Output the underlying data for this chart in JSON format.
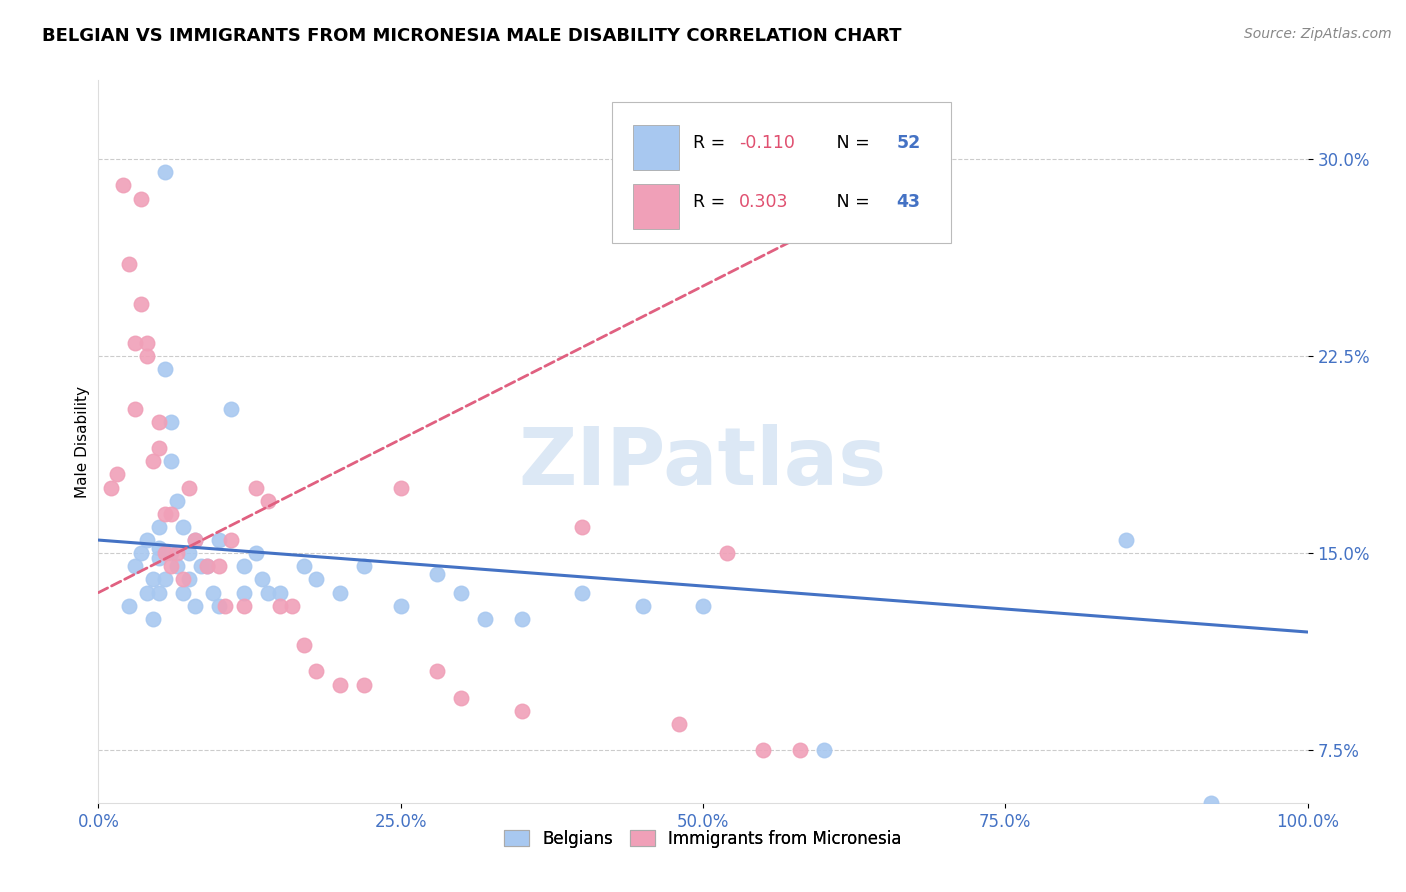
{
  "title": "BELGIAN VS IMMIGRANTS FROM MICRONESIA MALE DISABILITY CORRELATION CHART",
  "source": "Source: ZipAtlas.com",
  "ylabel": "Male Disability",
  "xlim": [
    0,
    100
  ],
  "ylim": [
    5.5,
    33.0
  ],
  "yticks": [
    7.5,
    15.0,
    22.5,
    30.0
  ],
  "xticks": [
    0,
    25,
    50,
    75,
    100
  ],
  "xtick_labels": [
    "0.0%",
    "25.0%",
    "50.0%",
    "75.0%",
    "100.0%"
  ],
  "ytick_labels": [
    "7.5%",
    "15.0%",
    "22.5%",
    "30.0%"
  ],
  "belgian_color": "#a8c8f0",
  "micronesia_color": "#f0a0b8",
  "belgian_R": -0.11,
  "belgian_N": 52,
  "micronesia_R": 0.303,
  "micronesia_N": 43,
  "background_color": "#ffffff",
  "grid_color": "#cccccc",
  "belgian_line_color": "#4472c4",
  "micronesia_line_color": "#e06080",
  "watermark_color": "#dce8f5",
  "axis_label_color": "#4472c4",
  "legend_R_color": "#e05070",
  "legend_N_color": "#4472c4",
  "belgian_x": [
    2.5,
    3.0,
    3.5,
    4.0,
    4.0,
    4.5,
    4.5,
    5.0,
    5.0,
    5.0,
    5.0,
    5.5,
    5.5,
    5.5,
    6.0,
    6.0,
    6.0,
    6.5,
    6.5,
    7.0,
    7.0,
    7.5,
    7.5,
    8.0,
    8.0,
    8.5,
    9.0,
    9.5,
    10.0,
    10.0,
    11.0,
    12.0,
    12.0,
    13.0,
    13.5,
    14.0,
    15.0,
    17.0,
    18.0,
    20.0,
    22.0,
    25.0,
    28.0,
    30.0,
    32.0,
    35.0,
    40.0,
    45.0,
    50.0,
    60.0,
    85.0,
    92.0
  ],
  "belgian_y": [
    13.0,
    14.5,
    15.0,
    13.5,
    15.5,
    14.0,
    12.5,
    15.2,
    16.0,
    14.8,
    13.5,
    29.5,
    22.0,
    14.0,
    20.0,
    18.5,
    15.0,
    17.0,
    14.5,
    16.0,
    13.5,
    15.0,
    14.0,
    15.5,
    13.0,
    14.5,
    14.5,
    13.5,
    15.5,
    13.0,
    20.5,
    14.5,
    13.5,
    15.0,
    14.0,
    13.5,
    13.5,
    14.5,
    14.0,
    13.5,
    14.5,
    13.0,
    14.2,
    13.5,
    12.5,
    12.5,
    13.5,
    13.0,
    13.0,
    7.5,
    15.5,
    5.5
  ],
  "micronesia_x": [
    1.0,
    1.5,
    2.0,
    2.5,
    3.0,
    3.0,
    3.5,
    3.5,
    4.0,
    4.0,
    4.5,
    5.0,
    5.0,
    5.5,
    5.5,
    6.0,
    6.0,
    6.5,
    7.0,
    7.5,
    8.0,
    9.0,
    10.0,
    10.5,
    11.0,
    12.0,
    13.0,
    14.0,
    15.0,
    16.0,
    17.0,
    18.0,
    20.0,
    22.0,
    25.0,
    28.0,
    30.0,
    35.0,
    40.0,
    48.0,
    52.0,
    55.0,
    58.0
  ],
  "micronesia_y": [
    17.5,
    18.0,
    29.0,
    26.0,
    23.0,
    20.5,
    24.5,
    28.5,
    23.0,
    22.5,
    18.5,
    20.0,
    19.0,
    16.5,
    15.0,
    16.5,
    14.5,
    15.0,
    14.0,
    17.5,
    15.5,
    14.5,
    14.5,
    13.0,
    15.5,
    13.0,
    17.5,
    17.0,
    13.0,
    13.0,
    11.5,
    10.5,
    10.0,
    10.0,
    17.5,
    10.5,
    9.5,
    9.0,
    16.0,
    8.5,
    15.0,
    7.5,
    7.5
  ],
  "blue_line_x0": 0,
  "blue_line_x1": 100,
  "blue_line_y0": 15.5,
  "blue_line_y1": 12.0,
  "pink_line_x0": 0,
  "pink_line_x1": 60,
  "pink_line_y0": 13.5,
  "pink_line_y1": 27.5
}
